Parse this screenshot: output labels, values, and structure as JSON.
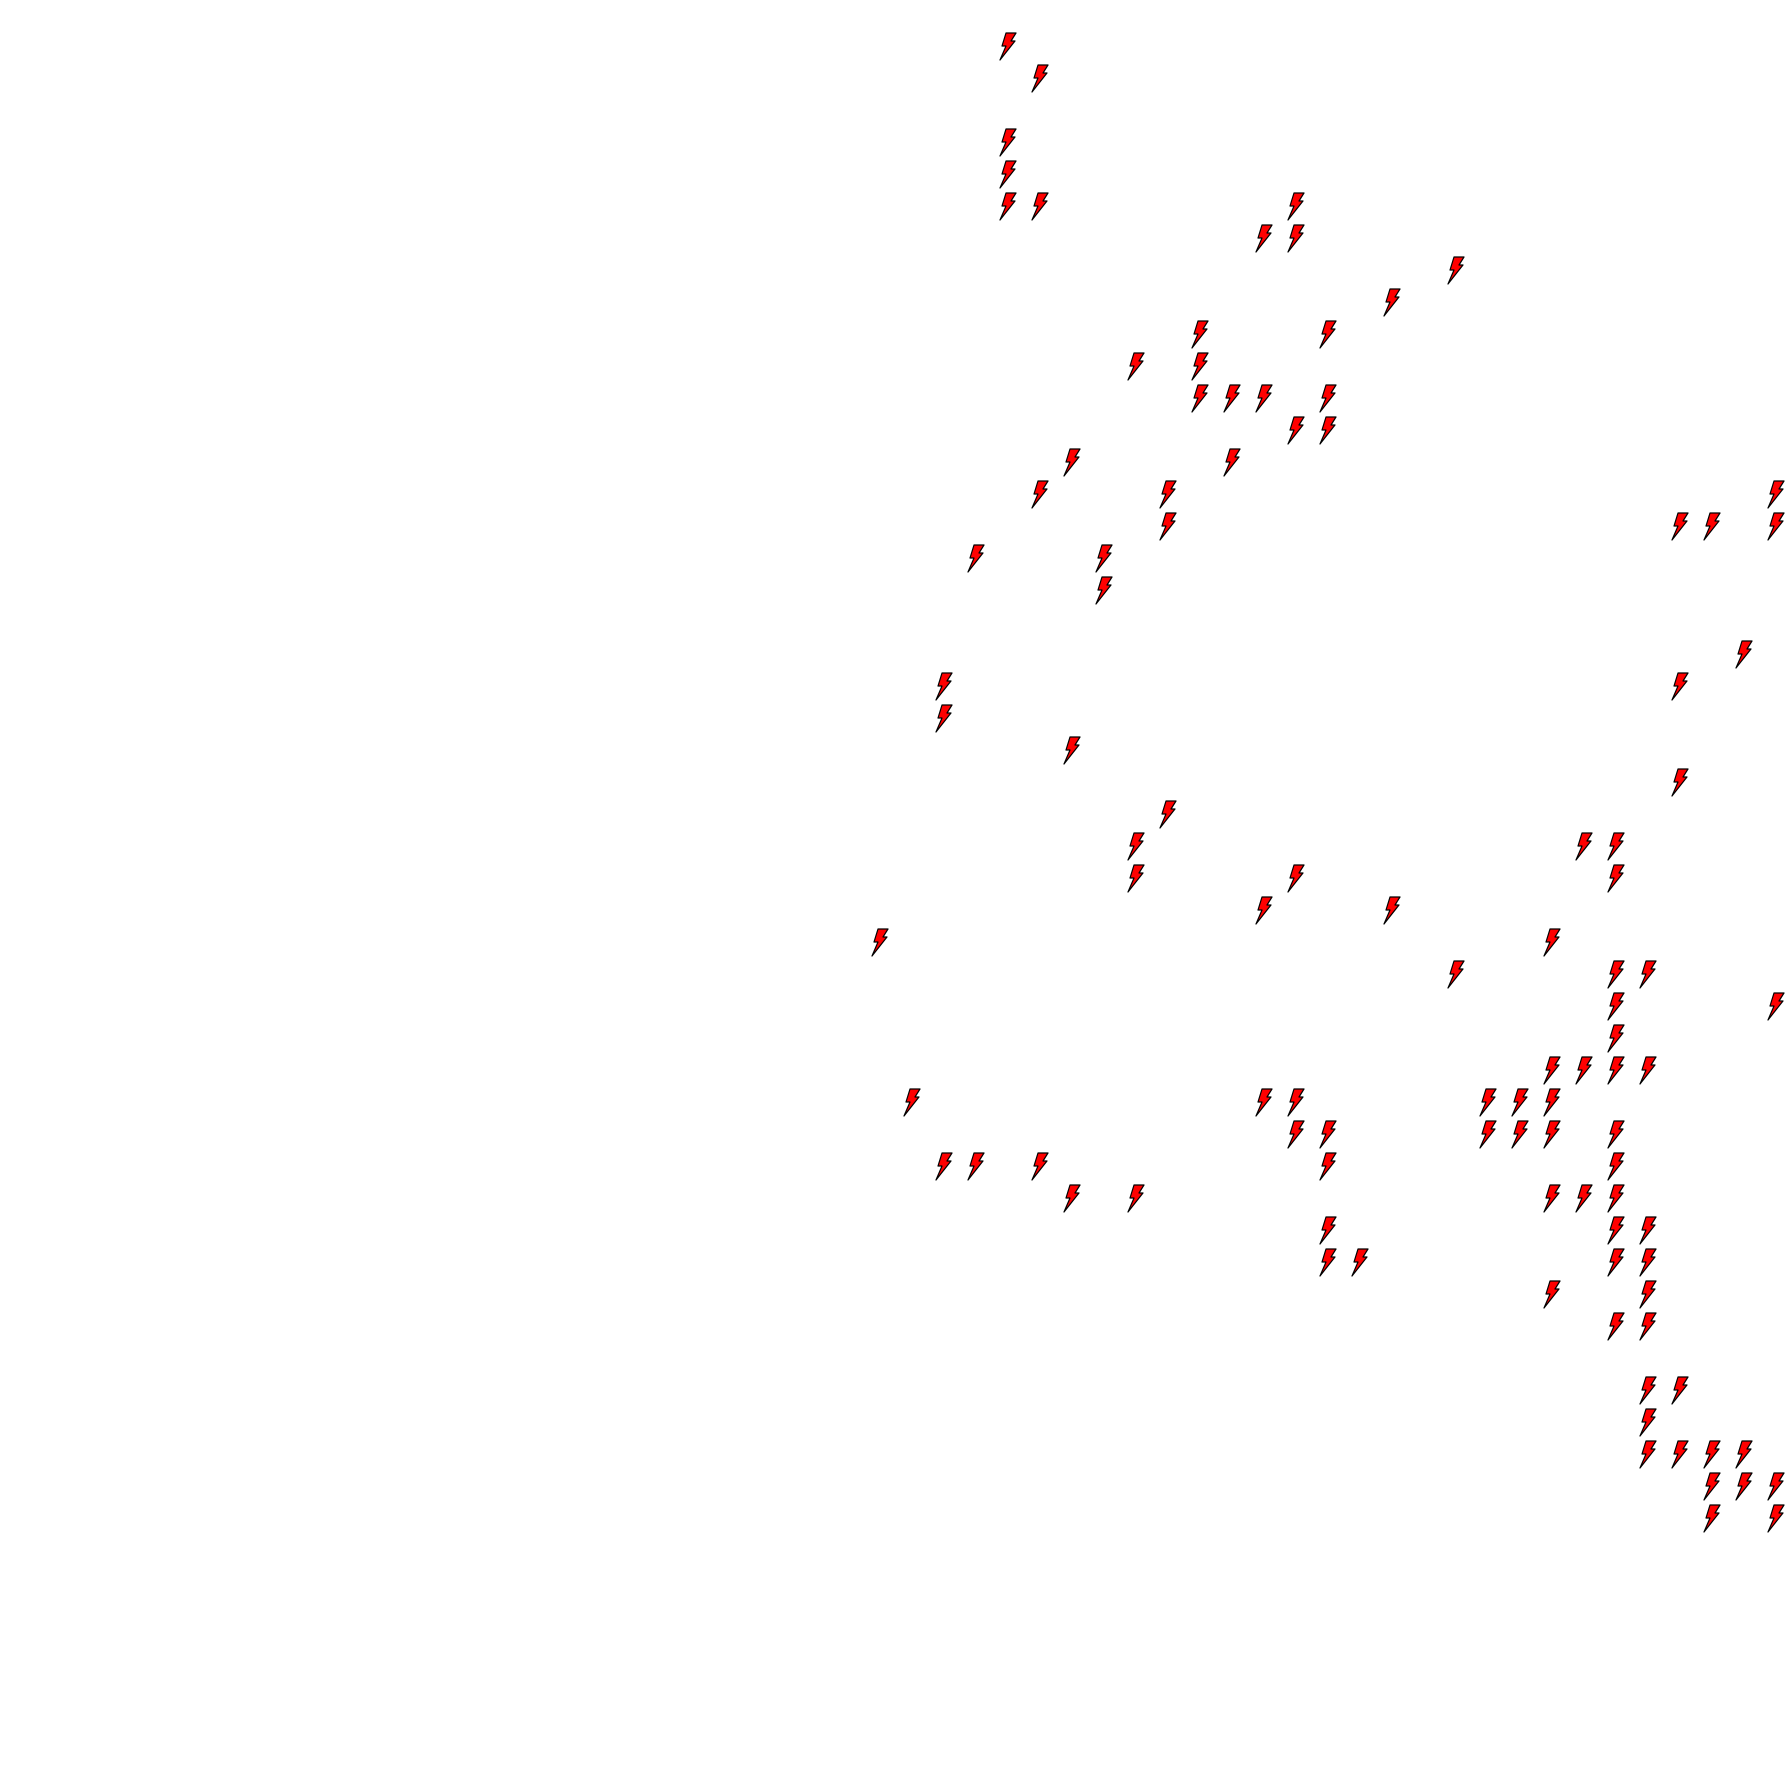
{
  "map": {
    "background": "#ffffff",
    "marker": {
      "icon": "lightning-bolt-icon",
      "fill_color": "#ff0000",
      "stroke_color": "#000000"
    }
  }
}
